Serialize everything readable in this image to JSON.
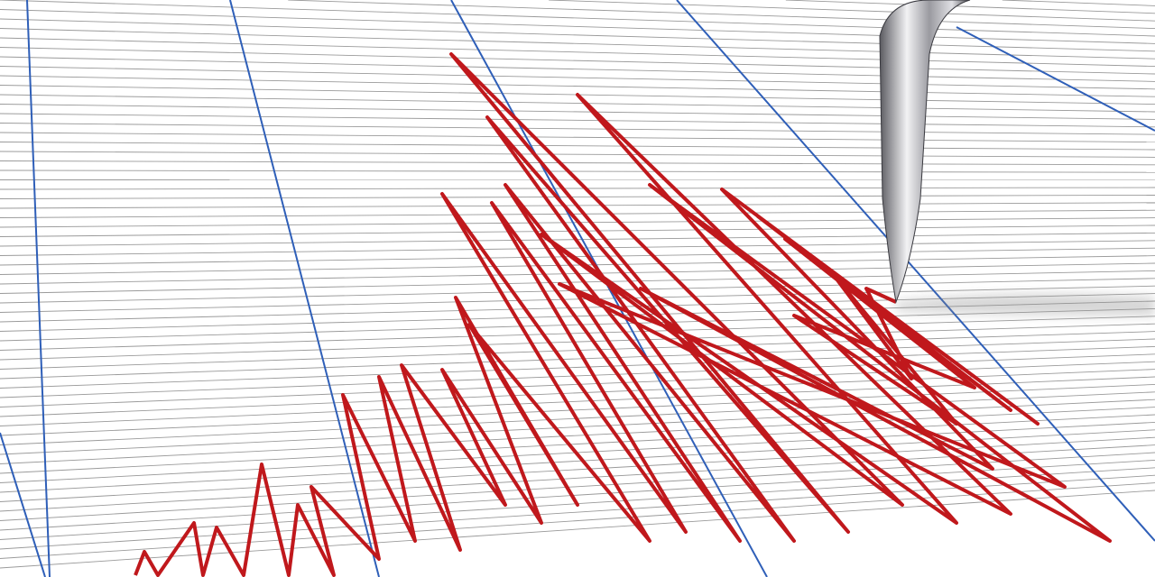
{
  "image": {
    "subject": "seismograph",
    "colors": {
      "paper": "#ffffff",
      "grid_line": "#9a9a9a",
      "blue_line": "#2f5fb8",
      "trace": "#c0181c",
      "needle_light": "#e8e8ea",
      "needle_dark": "#4a4a50"
    }
  }
}
